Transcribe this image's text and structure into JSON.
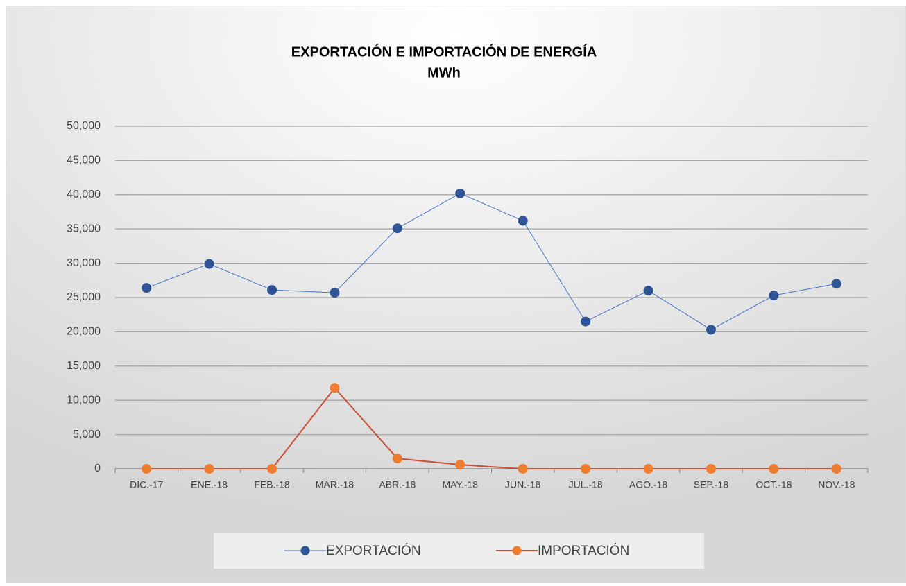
{
  "chart_data": {
    "type": "line",
    "title": "EXPORTACIÓN E IMPORTACIÓN DE ENERGÍA",
    "subtitle": "MWh",
    "categories": [
      "DIC.-17",
      "ENE.-18",
      "FEB.-18",
      "MAR.-18",
      "ABR.-18",
      "MAY.-18",
      "JUN.-18",
      "JUL.-18",
      "AGO.-18",
      "SEP.-18",
      "OCT.-18",
      "NOV.-18"
    ],
    "series": [
      {
        "name": "EXPORTACIÓN",
        "color": "#2f5597",
        "line_color": "#4472c4",
        "values": [
          26400,
          29900,
          26100,
          25700,
          35100,
          40200,
          36200,
          21500,
          26000,
          20300,
          25300,
          27000
        ]
      },
      {
        "name": "IMPORTACIÓN",
        "color": "#ed7d31",
        "line_color": "#c9513a",
        "values": [
          0,
          0,
          0,
          11800,
          1500,
          600,
          0,
          0,
          0,
          0,
          0,
          0
        ]
      }
    ],
    "ylim": [
      0,
      50000
    ],
    "yticks": [
      0,
      {
        "value": 5000,
        "label": "5,000"
      },
      {
        "value": 10000,
        "label": "10,000"
      },
      {
        "value": 15000,
        "label": "15,000"
      },
      {
        "value": 20000,
        "label": "20,000"
      },
      {
        "value": 25000,
        "label": "25,000"
      },
      {
        "value": 30000,
        "label": "30,000"
      },
      {
        "value": 35000,
        "label": "35,000"
      },
      {
        "value": 40000,
        "label": "40,000"
      },
      {
        "value": 45000,
        "label": "45,000"
      },
      {
        "value": 50000,
        "label": "50,000"
      }
    ],
    "grid": true,
    "legend": "bottom"
  }
}
